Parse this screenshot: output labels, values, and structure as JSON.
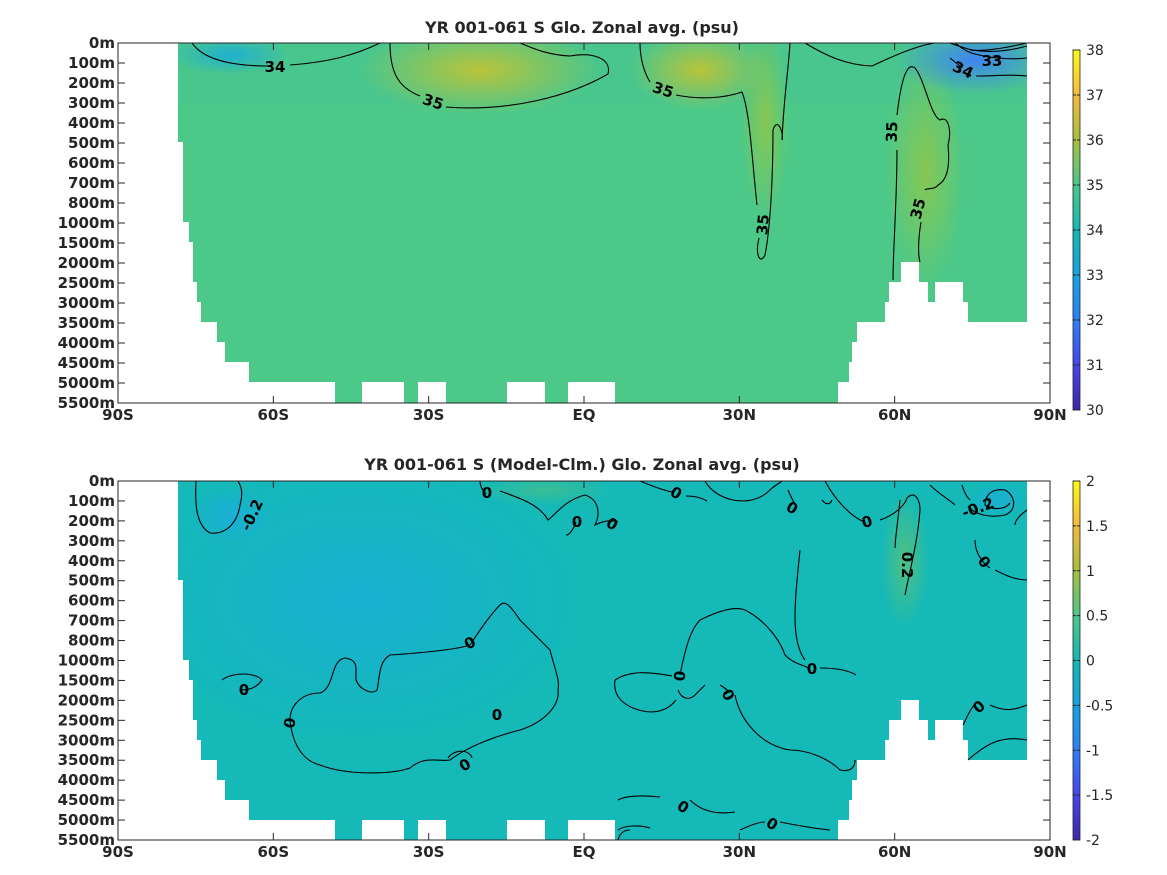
{
  "chart_data": [
    {
      "type": "heatmap",
      "title": "YR 001-061 S Glo. Zonal avg. (psu)",
      "x_ticks": [
        "90S",
        "60S",
        "30S",
        "EQ",
        "30N",
        "60N",
        "90N"
      ],
      "y_ticks": [
        "0m",
        "100m",
        "200m",
        "300m",
        "400m",
        "500m",
        "600m",
        "700m",
        "800m",
        "1000m",
        "1500m",
        "2000m",
        "2500m",
        "3000m",
        "3500m",
        "4000m",
        "4500m",
        "5000m",
        "5500m"
      ],
      "xlim": [
        -90,
        90
      ],
      "clim": [
        30,
        38
      ],
      "colorbar_ticks": [
        "38",
        "37",
        "36",
        "35",
        "34",
        "33",
        "32",
        "31",
        "30"
      ],
      "contour_labels": [
        "34",
        "35",
        "35",
        "35",
        "35",
        "35",
        "34",
        "33"
      ]
    },
    {
      "type": "heatmap",
      "title": "YR 001-061 S (Model-Clm.) Glo. Zonal avg. (psu)",
      "x_ticks": [
        "90S",
        "60S",
        "30S",
        "EQ",
        "30N",
        "60N",
        "90N"
      ],
      "y_ticks": [
        "0m",
        "100m",
        "200m",
        "300m",
        "400m",
        "500m",
        "600m",
        "700m",
        "800m",
        "1000m",
        "1500m",
        "2000m",
        "2500m",
        "3000m",
        "3500m",
        "4000m",
        "4500m",
        "5000m",
        "5500m"
      ],
      "xlim": [
        -90,
        90
      ],
      "clim": [
        -2,
        2
      ],
      "colorbar_ticks": [
        "2",
        "1.5",
        "1",
        "0.5",
        "0",
        "-0.5",
        "-1",
        "-1.5",
        "-2"
      ],
      "contour_labels": [
        "-0.2",
        "0",
        "0",
        "0",
        "0",
        "0",
        "0",
        "0.2",
        "-0.2",
        "0",
        "0",
        "0",
        "0",
        "0",
        "0",
        "0",
        "0",
        "0",
        "0",
        "0",
        "0"
      ]
    }
  ]
}
